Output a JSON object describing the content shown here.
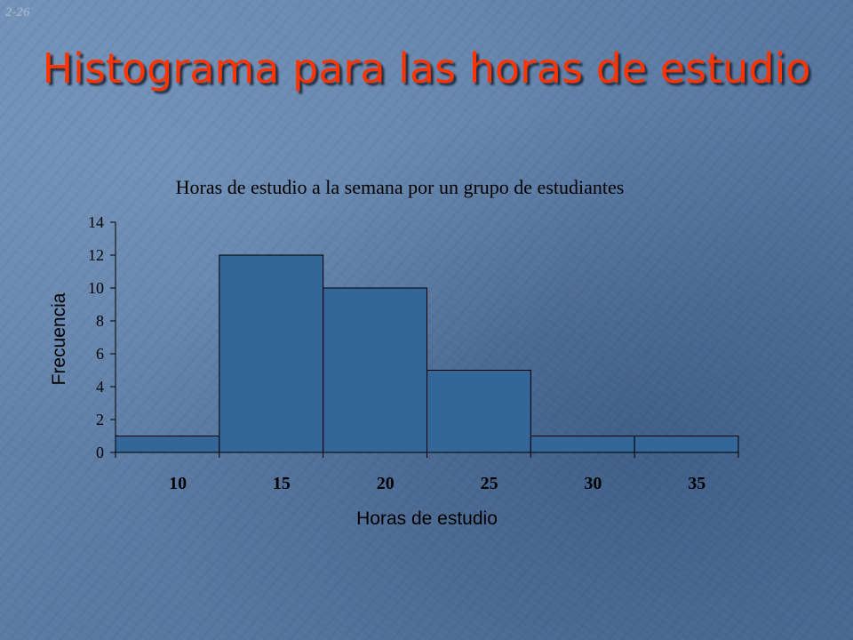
{
  "slide": {
    "number": "2-26",
    "title": "Histograma para las horas de estudio"
  },
  "colors": {
    "bar_fill": "#346699",
    "bar_stroke": "#000000",
    "title": "#ff3300",
    "text": "#000000"
  },
  "chart_data": {
    "type": "bar",
    "title": "Horas de estudio a la semana por un grupo de estudiantes",
    "xlabel": "Horas de estudio",
    "ylabel": "Frecuencia",
    "categories": [
      "10",
      "15",
      "20",
      "25",
      "30",
      "35"
    ],
    "values": [
      1,
      12,
      10,
      5,
      1,
      1
    ],
    "ylim": [
      0,
      14
    ],
    "yticks": [
      0,
      2,
      4,
      6,
      8,
      10,
      12,
      14
    ],
    "grid": false,
    "legend": "none"
  }
}
